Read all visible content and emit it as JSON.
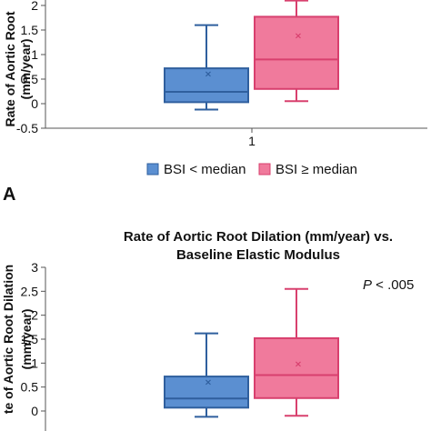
{
  "colors": {
    "blue_fill": "#5b8fd1",
    "blue_edge": "#2f5f9e",
    "pink_fill": "#f07a9c",
    "pink_edge": "#d8406e",
    "axis": "#555555"
  },
  "chart_data": [
    {
      "type": "box",
      "panel_label": "A",
      "title": "",
      "ylabel_line1": "Rate of Aortic Root",
      "ylabel_line2": "(mm/year)",
      "xlabel": "",
      "categories": [
        "1"
      ],
      "ylim": [
        -0.5,
        2
      ],
      "yticks": [
        "-0.5",
        "0",
        "0.5",
        "1",
        "1.5",
        "2"
      ],
      "yticks_values": [
        -0.5,
        0,
        0.5,
        1,
        1.5,
        2
      ],
      "legend": [
        "BSI < median",
        "BSI ≥ median"
      ],
      "legend_position": "bottom",
      "series": [
        {
          "name": "BSI < median",
          "whisker_low": -0.12,
          "q1": 0.03,
          "median": 0.24,
          "q3": 0.72,
          "whisker_high": 1.6,
          "mean": 0.62
        },
        {
          "name": "BSI ≥ median",
          "whisker_low": 0.05,
          "q1": 0.3,
          "median": 0.9,
          "q3": 1.77,
          "whisker_high": 2.1,
          "mean": 1.4
        }
      ]
    },
    {
      "type": "box",
      "title_line1": "Rate of Aortic Root Dilation (mm/year) vs.",
      "title_line2": "Baseline Elastic Modulus",
      "ylabel_line1": "te of Aortic Root Dilation",
      "ylabel_line2": "(mm/year)",
      "ylim": [
        0,
        3
      ],
      "yticks": [
        "0",
        "0.5",
        "1",
        "1.5",
        "2",
        "2.5",
        "3"
      ],
      "yticks_values": [
        0,
        0.5,
        1,
        1.5,
        2,
        2.5,
        3
      ],
      "annotation_p": "P",
      "annotation_rest": " < .005",
      "series": [
        {
          "whisker_low": -0.12,
          "q1": 0.07,
          "median": 0.26,
          "q3": 0.72,
          "whisker_high": 1.62,
          "mean": 0.62
        },
        {
          "whisker_low": -0.1,
          "q1": 0.27,
          "median": 0.75,
          "q3": 1.52,
          "whisker_high": 2.55,
          "mean": 1.0
        }
      ]
    }
  ]
}
